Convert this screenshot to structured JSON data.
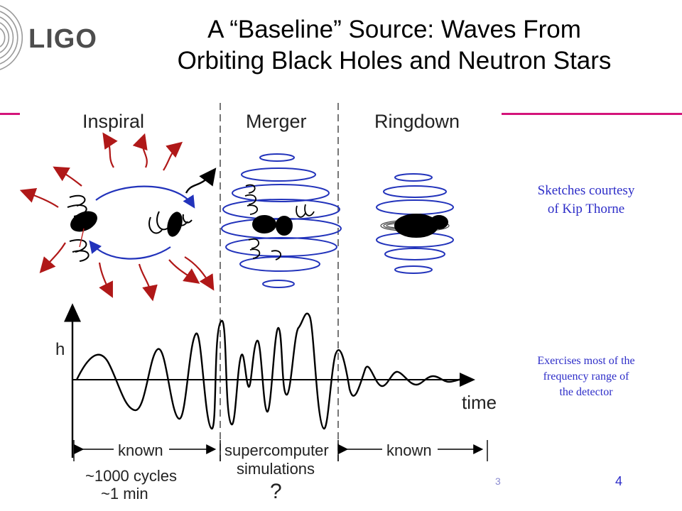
{
  "header": {
    "logo_text": "LIGO",
    "title_line1": "A “Baseline” Source:   Waves From",
    "title_line2": "Orbiting Black Holes and Neutron Stars"
  },
  "diagram": {
    "phases": [
      "Inspiral",
      "Merger",
      "Ringdown"
    ],
    "axis_y_label": "h",
    "axis_x_label": "time",
    "spans": {
      "left": "known",
      "middle_line1": "supercomputer",
      "middle_line2": "simulations",
      "right": "known"
    },
    "inspiral_note_line1": "~1000 cycles",
    "inspiral_note_line2": "~1 min",
    "merger_note": "?"
  },
  "notes": {
    "sketch_line1": "Sketches courtesy",
    "sketch_line2": "of Kip Thorne",
    "range_line1": "Exercises most of the",
    "range_line2": "frequency range of",
    "range_line3": "the detector"
  },
  "footer": {
    "page_number": "4",
    "stray_glyph": "3"
  },
  "colors": {
    "accent_rule": "#d4147a",
    "note_text": "#2d2dc8",
    "orbit_blue": "#2233bb",
    "arrow_red": "#b01818"
  }
}
